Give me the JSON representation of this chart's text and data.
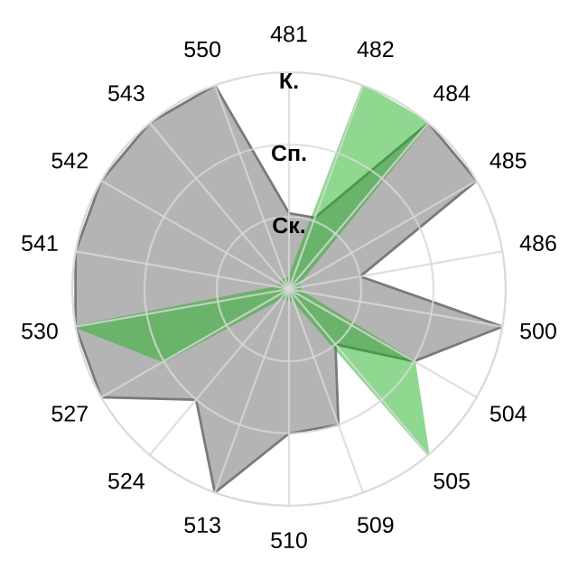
{
  "chart_data": {
    "type": "radar",
    "categories": [
      "481",
      "482",
      "484",
      "485",
      "486",
      "500",
      "504",
      "505",
      "509",
      "510",
      "513",
      "524",
      "527",
      "530",
      "541",
      "542",
      "543",
      "550"
    ],
    "ylim": [
      0,
      3
    ],
    "yticks": [
      {
        "value": 1,
        "label": "Ск."
      },
      {
        "value": 2,
        "label": "Сп."
      },
      {
        "value": 3,
        "label": "К."
      }
    ],
    "grid": true,
    "series": [
      {
        "color": "#b4b4b4",
        "values": [
          1.05,
          1.05,
          3,
          3,
          1,
          3,
          2,
          1,
          2,
          2,
          3,
          2,
          3,
          3,
          3,
          3,
          3,
          3
        ]
      },
      {
        "color": "#21b121",
        "values": [
          0.15,
          3,
          3,
          0.15,
          0.15,
          0.15,
          2,
          3,
          0.15,
          0.15,
          0.15,
          0.15,
          2,
          3,
          0.15,
          0.15,
          0.15,
          0.15
        ]
      }
    ]
  }
}
